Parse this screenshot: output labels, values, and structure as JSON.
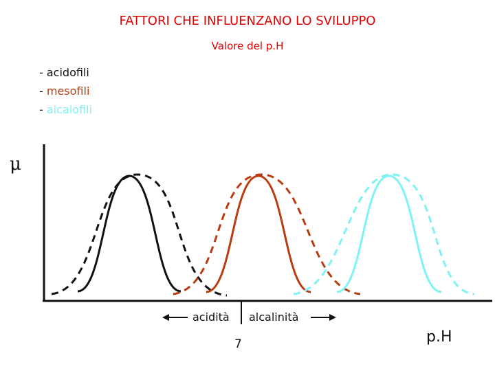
{
  "title": "FATTORI CHE INFLUENZANO LO SVILUPPO",
  "subtitle": "Valore del p.H",
  "legend": [
    {
      "dash": "- ",
      "label": "acidofili",
      "color": "#111111"
    },
    {
      "dash": "- ",
      "label": "mesofili",
      "color": "#b83c10"
    },
    {
      "dash": "- ",
      "label": "alcalofili",
      "color": "#7ef2f4"
    }
  ],
  "y_axis_symbol": "μ",
  "x_axis_label": "p.H",
  "neutral_value": "7",
  "acidity_label": "acidità",
  "alkalinity_label": "alcalinità",
  "colors": {
    "title": "#e00000",
    "acidofili": "#111111",
    "mesofili": "#b83c10",
    "alcalofili": "#7ef2f4",
    "axis": "#111111"
  }
}
